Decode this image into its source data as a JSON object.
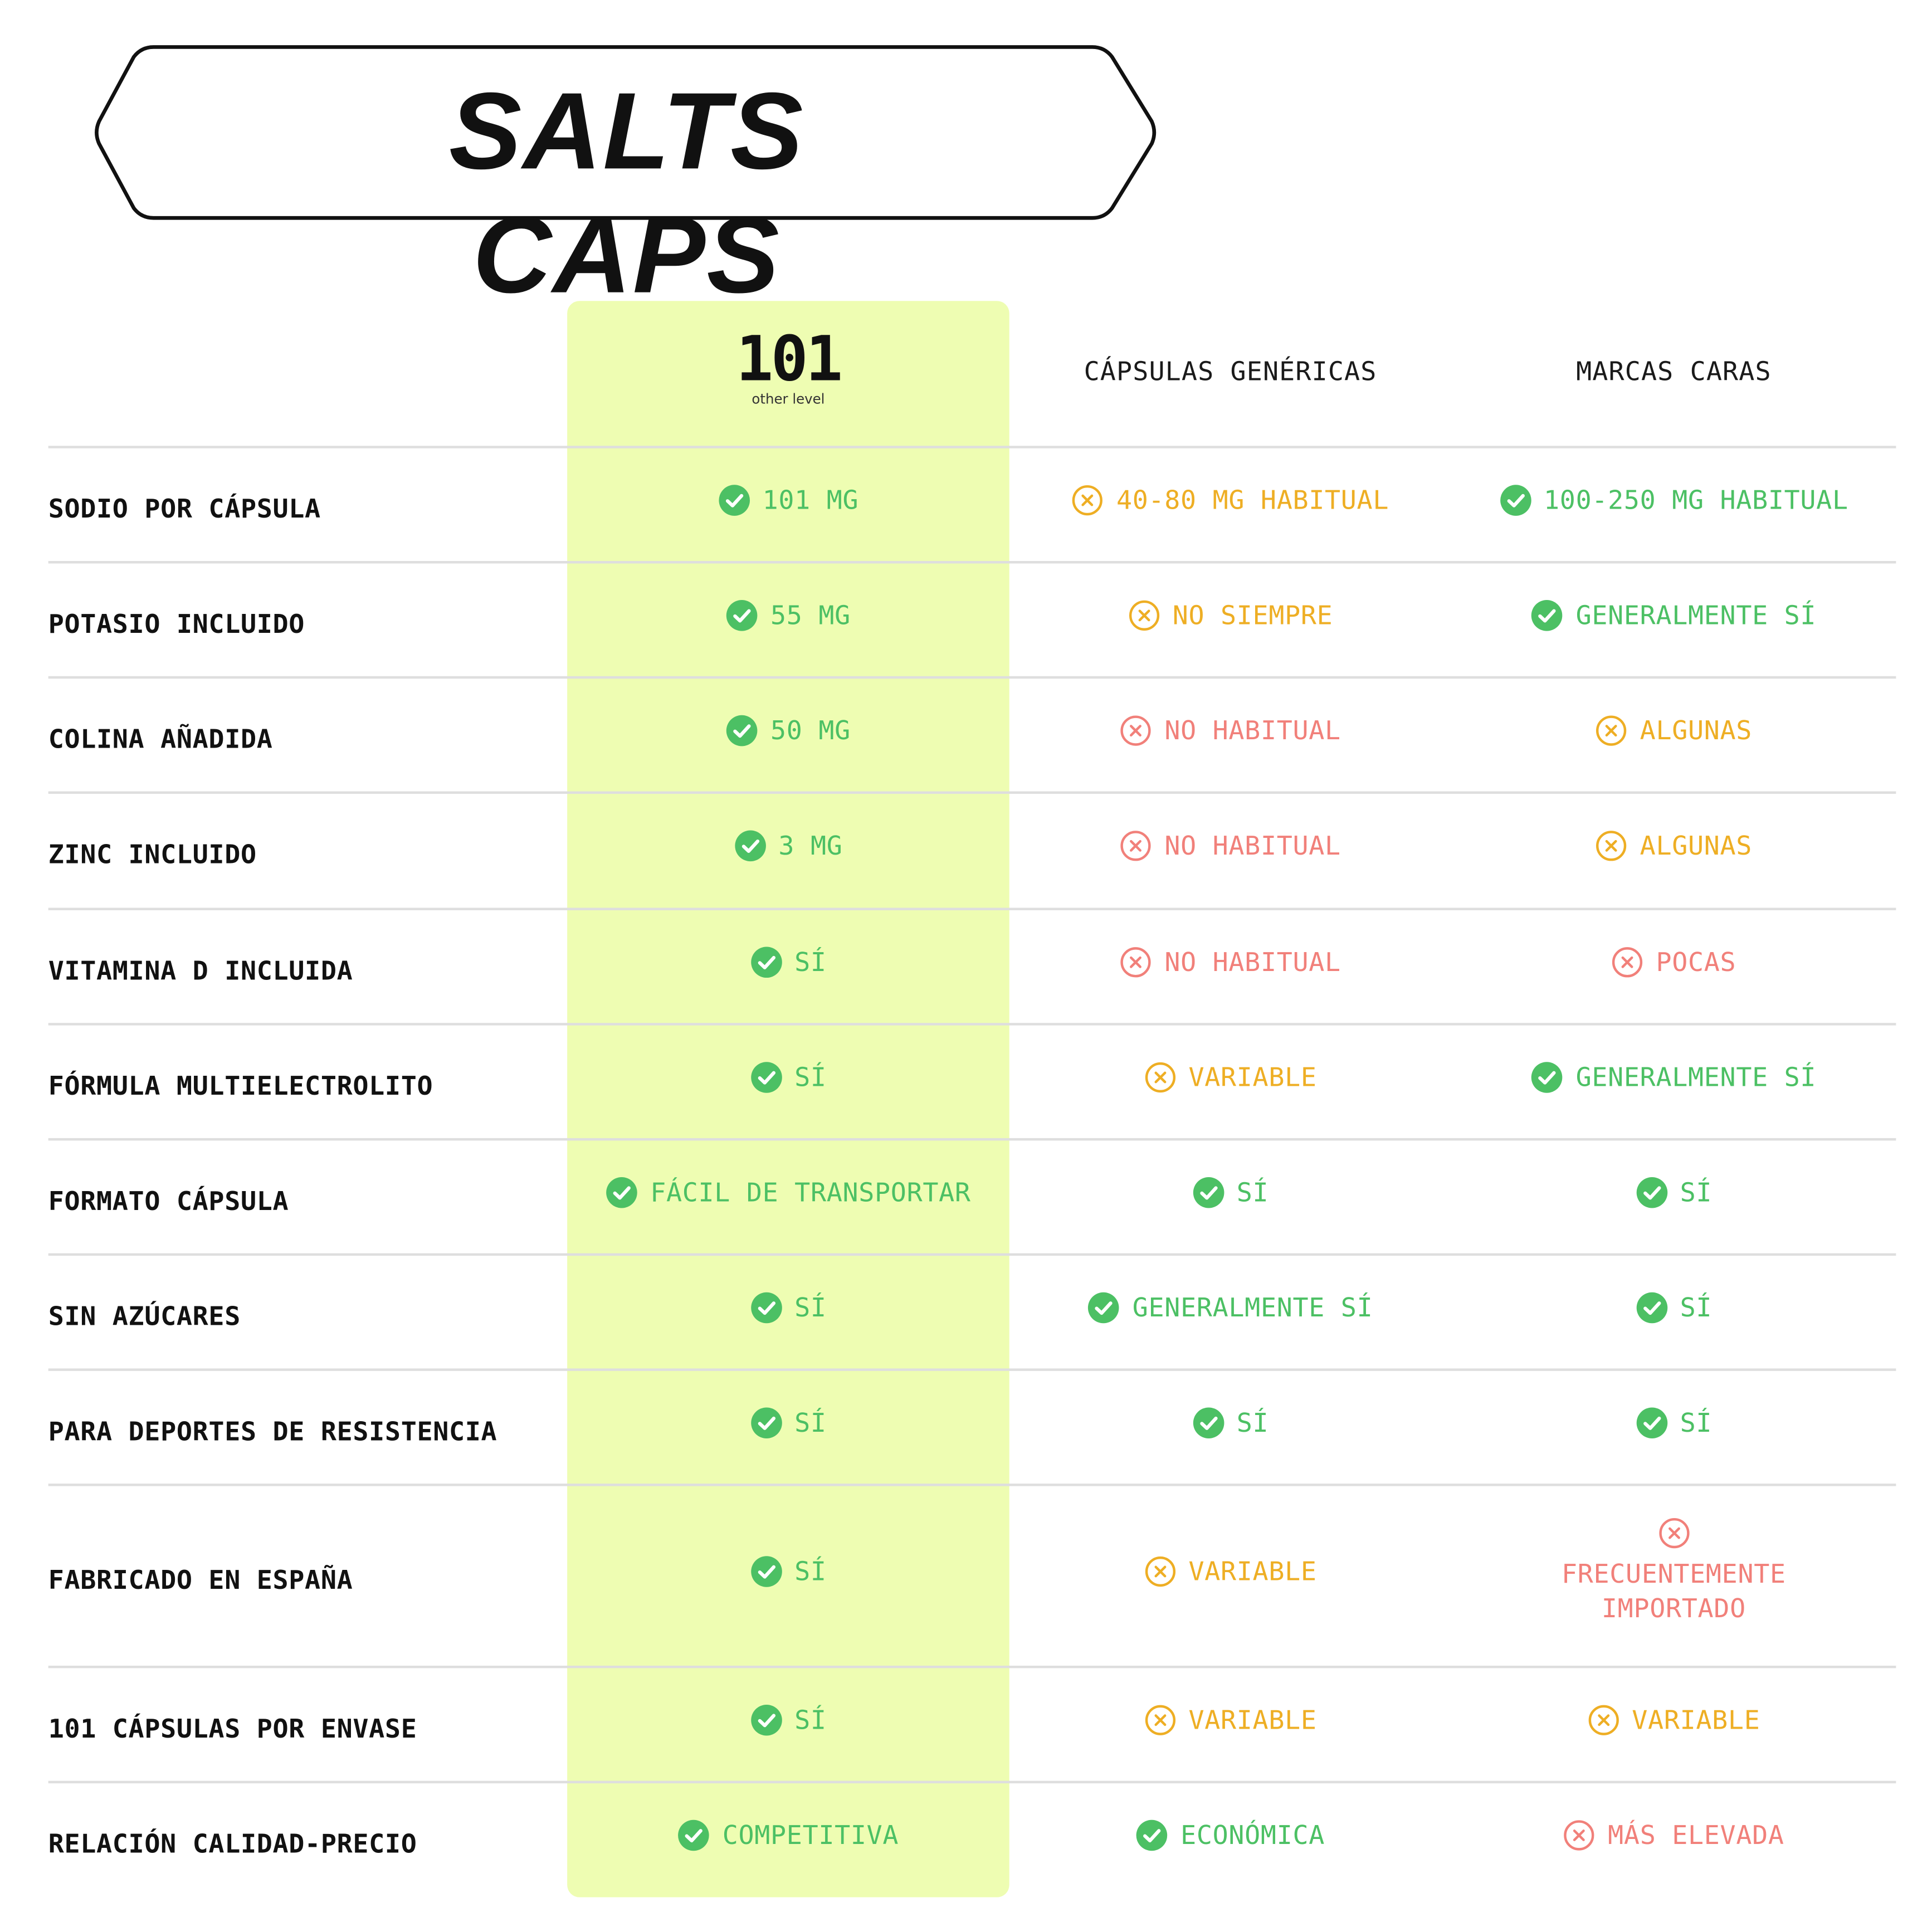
{
  "title": "SALTS CAPS",
  "brand": {
    "number": "101",
    "tagline": "other level"
  },
  "columns": [
    "CÁPSULAS GENÉRICAS",
    "MARCAS CARAS"
  ],
  "colors": {
    "check": "#4cc064",
    "caution": "#eeae24",
    "negative": "#f1807a",
    "highlight": "#eefdb2"
  },
  "rows": [
    {
      "label": "SODIO POR CÁPSULA",
      "cells": [
        {
          "text": "101 MG",
          "status": "check"
        },
        {
          "text": "40-80 MG HABITUAL",
          "status": "caution"
        },
        {
          "text": "100-250 MG HABITUAL",
          "status": "check"
        }
      ]
    },
    {
      "label": "POTASIO INCLUIDO",
      "cells": [
        {
          "text": "55 MG",
          "status": "check"
        },
        {
          "text": "NO SIEMPRE",
          "status": "caution"
        },
        {
          "text": "GENERALMENTE SÍ",
          "status": "check"
        }
      ]
    },
    {
      "label": "COLINA AÑADIDA",
      "cells": [
        {
          "text": "50 MG",
          "status": "check"
        },
        {
          "text": "NO HABITUAL",
          "status": "negative"
        },
        {
          "text": "ALGUNAS",
          "status": "caution"
        }
      ]
    },
    {
      "label": "ZINC INCLUIDO",
      "cells": [
        {
          "text": "3 MG",
          "status": "check"
        },
        {
          "text": "NO HABITUAL",
          "status": "negative"
        },
        {
          "text": "ALGUNAS",
          "status": "caution"
        }
      ]
    },
    {
      "label": "VITAMINA D INCLUIDA",
      "cells": [
        {
          "text": "SÍ",
          "status": "check"
        },
        {
          "text": "NO HABITUAL",
          "status": "negative"
        },
        {
          "text": "POCAS",
          "status": "negative"
        }
      ]
    },
    {
      "label": "FÓRMULA MULTIELECTROLITO",
      "cells": [
        {
          "text": "SÍ",
          "status": "check"
        },
        {
          "text": "VARIABLE",
          "status": "caution"
        },
        {
          "text": "GENERALMENTE SÍ",
          "status": "check"
        }
      ]
    },
    {
      "label": "FORMATO CÁPSULA",
      "cells": [
        {
          "text": "FÁCIL DE TRANSPORTAR",
          "status": "check"
        },
        {
          "text": "SÍ",
          "status": "check"
        },
        {
          "text": "SÍ",
          "status": "check"
        }
      ]
    },
    {
      "label": "SIN AZÚCARES",
      "cells": [
        {
          "text": "SÍ",
          "status": "check"
        },
        {
          "text": "GENERALMENTE SÍ",
          "status": "check"
        },
        {
          "text": "SÍ",
          "status": "check"
        }
      ]
    },
    {
      "label": "PARA DEPORTES DE RESISTENCIA",
      "cells": [
        {
          "text": "SÍ",
          "status": "check"
        },
        {
          "text": "SÍ",
          "status": "check"
        },
        {
          "text": "SÍ",
          "status": "check"
        }
      ]
    },
    {
      "label": "FABRICADO EN ESPAÑA",
      "cells": [
        {
          "text": "SÍ",
          "status": "check"
        },
        {
          "text": "VARIABLE",
          "status": "caution"
        },
        {
          "text": "FRECUENTEMENTE IMPORTADO",
          "lines": [
            "FRECUENTEMENTE",
            "IMPORTADO"
          ],
          "status": "negative"
        }
      ]
    },
    {
      "label": "101 CÁPSULAS POR ENVASE",
      "cells": [
        {
          "text": "SÍ",
          "status": "check"
        },
        {
          "text": "VARIABLE",
          "status": "caution"
        },
        {
          "text": "VARIABLE",
          "status": "caution"
        }
      ]
    },
    {
      "label": "RELACIÓN CALIDAD-PRECIO",
      "cells": [
        {
          "text": "COMPETITIVA",
          "status": "check"
        },
        {
          "text": "ECONÓMICA",
          "status": "check"
        },
        {
          "text": "MÁS ELEVADA",
          "status": "negative"
        }
      ]
    }
  ]
}
